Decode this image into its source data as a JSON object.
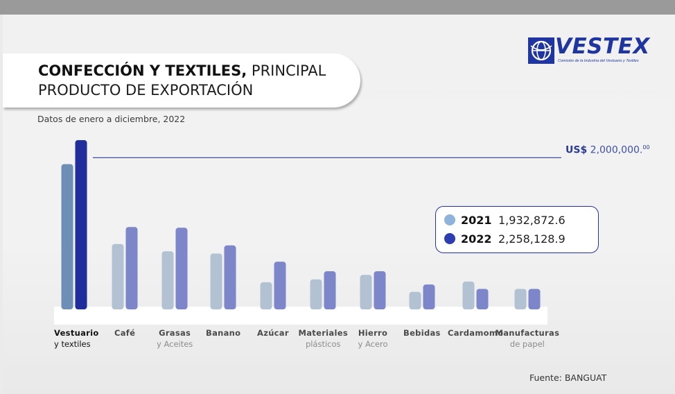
{
  "title": {
    "bold": "CONFECCIÓN Y TEXTILES,",
    "rest_line1": " PRINCIPAL",
    "line2": "PRODUCTO DE EXPORTACIÓN"
  },
  "subtitle": "Datos de enero a diciembre, 2022",
  "logo": {
    "word": "VESTEX",
    "tagline": "Comisión de la Industria del Vestuario y Textiles"
  },
  "reference": {
    "currency": "US$",
    "value": "2,000,000.",
    "sup": "00",
    "amount": 2000000
  },
  "legend": [
    {
      "year": "2021",
      "value": "1,932,872.6",
      "color": "#8fb3db"
    },
    {
      "year": "2022",
      "value": "2,258,128.9",
      "color": "#2d3fb0"
    }
  ],
  "source": "Fuente: BANGUAT",
  "colors": {
    "highlight_2021": "#6d8fb5",
    "highlight_2022": "#1f2e9a",
    "other_2021": "#b3c2d3",
    "other_2022": "#7c86c9",
    "ref_line": "#2a3a95"
  },
  "chart_data": {
    "type": "bar",
    "title": "CONFECCIÓN Y TEXTILES, PRINCIPAL PRODUCTO DE EXPORTACIÓN",
    "subtitle": "Datos de enero a diciembre, 2022",
    "categories": [
      {
        "line1": "Vestuario",
        "line2": "y textiles"
      },
      {
        "line1": "Café",
        "line2": ""
      },
      {
        "line1": "Grasas",
        "line2": "y Aceites"
      },
      {
        "line1": "Banano",
        "line2": ""
      },
      {
        "line1": "Azúcar",
        "line2": ""
      },
      {
        "line1": "Materiales",
        "line2": "plásticos"
      },
      {
        "line1": "Hierro",
        "line2": "y Acero"
      },
      {
        "line1": "Bebidas",
        "line2": ""
      },
      {
        "line1": "Cardamomo",
        "line2": ""
      },
      {
        "line1": "Manufacturas",
        "line2": "de papel"
      }
    ],
    "series": [
      {
        "name": "2021",
        "values": [
          1932872.6,
          850000,
          750000,
          720000,
          330000,
          370000,
          430000,
          200000,
          340000,
          240000
        ]
      },
      {
        "name": "2022",
        "values": [
          2258128.9,
          1080000,
          1070000,
          830000,
          610000,
          480000,
          480000,
          300000,
          240000,
          240000
        ]
      }
    ],
    "reference_line": 2000000,
    "ylim": [
      0,
      2258128.9
    ],
    "grid": false,
    "legend_position": "right"
  }
}
